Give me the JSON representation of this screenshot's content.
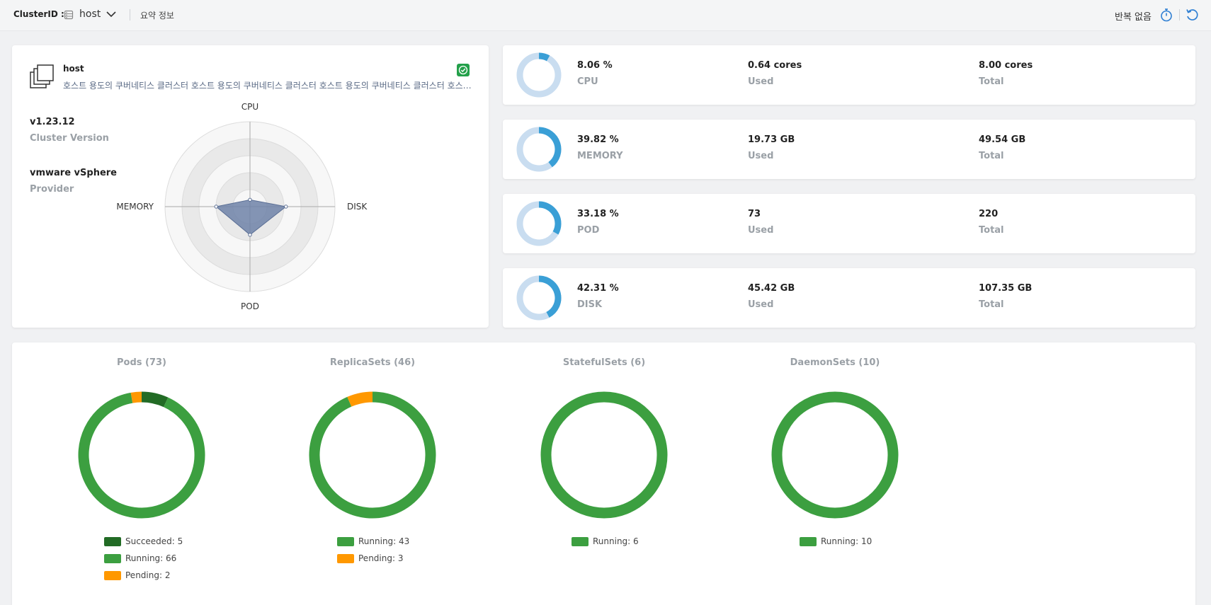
{
  "topbar": {
    "cluster_label": "ClusterID :",
    "cluster_value": "host",
    "summary_link": "요약 정보",
    "repeat_label": "반복 없음",
    "icons": [
      "server-icon",
      "chevron-down-icon",
      "stopwatch-icon",
      "refresh-icon"
    ]
  },
  "cluster": {
    "name": "host",
    "description": "호스트 용도의 쿠버네티스 클러스터 호스트 용도의 쿠버네티스 클러스터 호스트 용도의 쿠버네티스 클러스터 호스…",
    "version": "v1.23.12",
    "version_label": "Cluster Version",
    "provider": "vmware vSphere",
    "provider_label": "Provider",
    "status_icon": "check-circle-icon",
    "status_color": "#23a04a"
  },
  "radar": {
    "axes": [
      "CPU",
      "DISK",
      "POD",
      "MEMORY"
    ],
    "values": [
      8.06,
      42.31,
      33.18,
      39.82
    ],
    "max": 100,
    "fill_color": "#6e82a8"
  },
  "resources": [
    {
      "percent": "8.06 %",
      "name": "CPU",
      "used": "0.64 cores",
      "used_label": "Used",
      "total": "8.00 cores",
      "total_label": "Total",
      "ratio": 0.0806
    },
    {
      "percent": "39.82 %",
      "name": "MEMORY",
      "used": "19.73 GB",
      "used_label": "Used",
      "total": "49.54 GB",
      "total_label": "Total",
      "ratio": 0.3982
    },
    {
      "percent": "33.18 %",
      "name": "POD",
      "used": "73",
      "used_label": "Used",
      "total": "220",
      "total_label": "Total",
      "ratio": 0.3318
    },
    {
      "percent": "42.31 %",
      "name": "DISK",
      "used": "45.42 GB",
      "used_label": "Used",
      "total": "107.35 GB",
      "total_label": "Total",
      "ratio": 0.4231
    }
  ],
  "colors": {
    "donut_used": "#3a9fd6",
    "donut_track": "#c9ddf0",
    "running": "#3c9f40",
    "succeeded": "#226b25",
    "pending": "#ff9800"
  },
  "workloads": [
    {
      "title": "Pods (73)",
      "segments": [
        {
          "label": "Succeeded: 5",
          "value": 5,
          "color": "#226b25"
        },
        {
          "label": "Running: 66",
          "value": 66,
          "color": "#3c9f40"
        },
        {
          "label": "Pending: 2",
          "value": 2,
          "color": "#ff9800"
        }
      ]
    },
    {
      "title": "ReplicaSets (46)",
      "segments": [
        {
          "label": "Running: 43",
          "value": 43,
          "color": "#3c9f40"
        },
        {
          "label": "Pending: 3",
          "value": 3,
          "color": "#ff9800"
        }
      ]
    },
    {
      "title": "StatefulSets (6)",
      "segments": [
        {
          "label": "Running: 6",
          "value": 6,
          "color": "#3c9f40"
        }
      ]
    },
    {
      "title": "DaemonSets (10)",
      "segments": [
        {
          "label": "Running: 10",
          "value": 10,
          "color": "#3c9f40"
        }
      ]
    }
  ]
}
